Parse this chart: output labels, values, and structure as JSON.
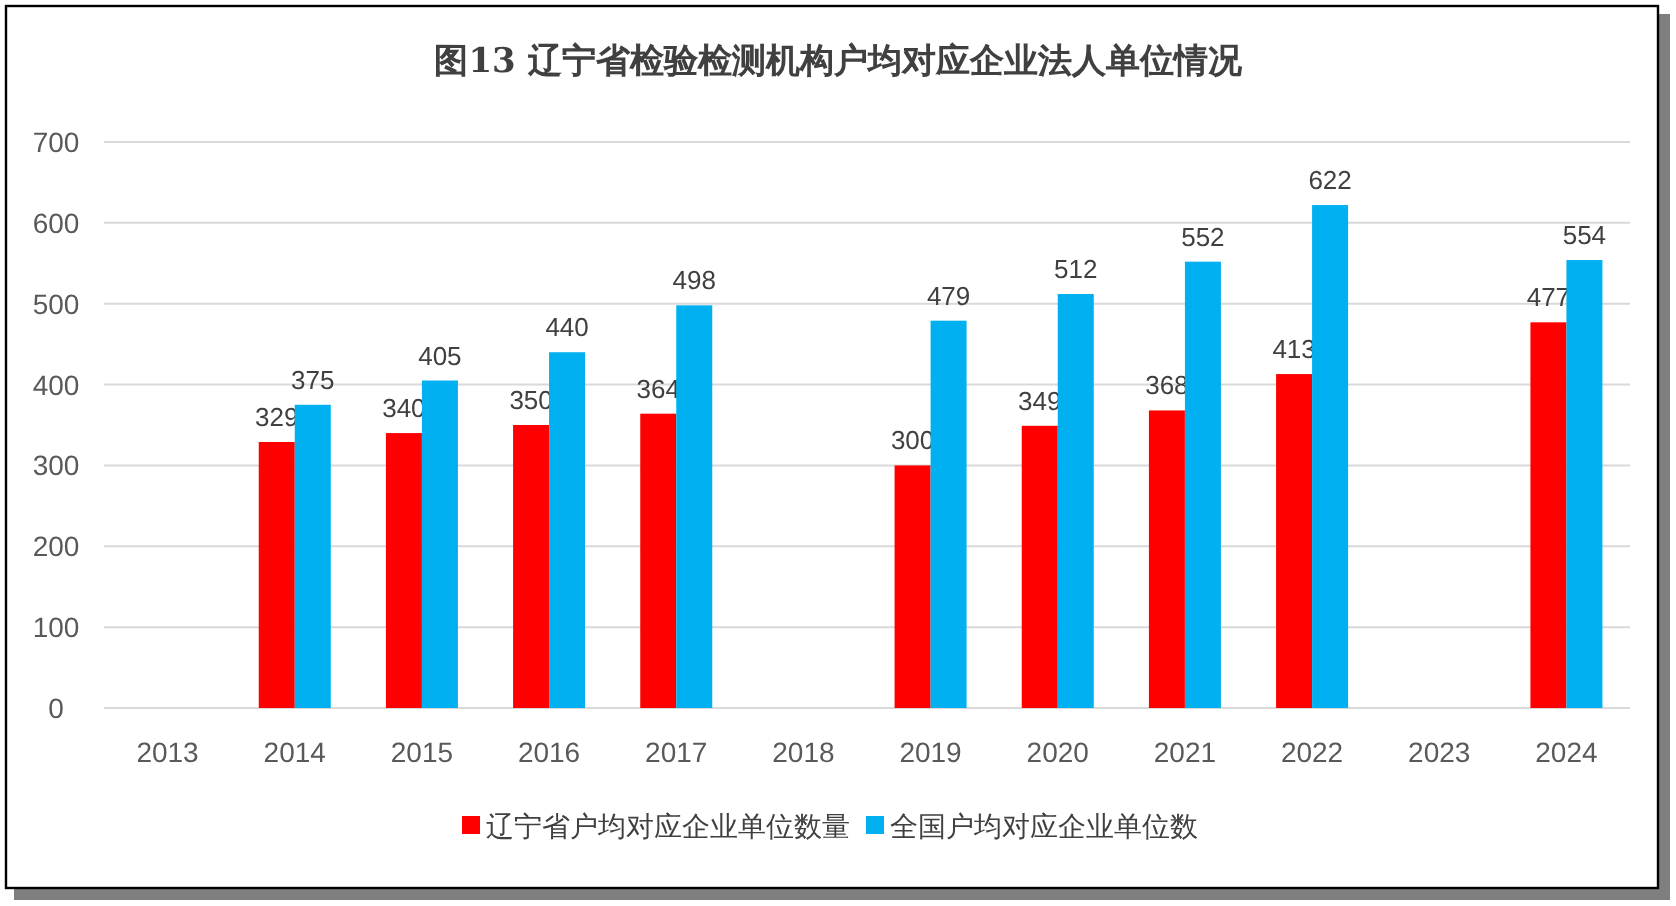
{
  "chart_data": {
    "type": "bar",
    "title": "图13  辽宁省检验检测机构户均对应企业法人单位情况",
    "categories": [
      "2013",
      "2014",
      "2015",
      "2016",
      "2017",
      "2018",
      "2019",
      "2020",
      "2021",
      "2022",
      "2023",
      "2024"
    ],
    "series": [
      {
        "name": "辽宁省户均对应企业单位数量",
        "color": "#ff0000",
        "values": [
          null,
          329,
          340,
          350,
          364,
          null,
          300,
          349,
          368,
          413,
          null,
          477
        ]
      },
      {
        "name": "全国户均对应企业单位数",
        "color": "#00b0f0",
        "values": [
          null,
          375,
          405,
          440,
          498,
          null,
          479,
          512,
          552,
          622,
          null,
          554
        ]
      }
    ],
    "ylim": [
      0,
      700
    ],
    "yticks": [
      0,
      100,
      200,
      300,
      400,
      500,
      600,
      700
    ],
    "grid": "y",
    "legend": "bottom",
    "data_labels": true
  }
}
